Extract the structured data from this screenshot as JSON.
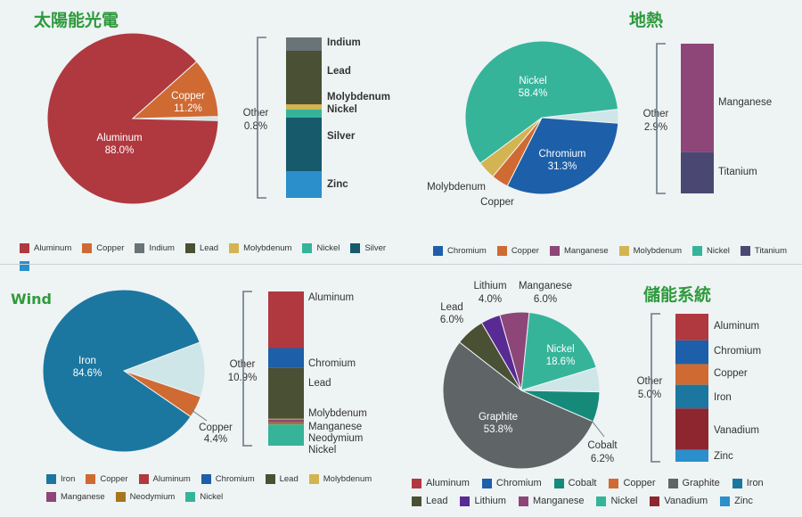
{
  "colors": {
    "Aluminum": "#b0383f",
    "Copper": "#cf6a33",
    "Indium": "#6a7377",
    "Lead": "#4a5034",
    "Molybdenum": "#d3b352",
    "Nickel": "#35b49a",
    "Silver": "#175a6c",
    "Zinc": "#2a8fcb",
    "Chromium": "#1d5fa8",
    "Manganese": "#8d4677",
    "Titanium": "#4a4872",
    "Iron": "#1b77a0",
    "Neodymium": "#a6761d",
    "Cobalt": "#168a7a",
    "Graphite": "#5f6466",
    "Lithium": "#5a2a94",
    "Vanadium": "#8e2630",
    "Other": "#cfe6e8"
  },
  "chart_data": [
    {
      "type": "pie",
      "title": "太陽能光電",
      "slices": [
        {
          "name": "Aluminum",
          "value": 88.0,
          "label": "Aluminum",
          "pct": "88.0%"
        },
        {
          "name": "Copper",
          "value": 11.2,
          "label": "Copper",
          "pct": "11.2%"
        },
        {
          "name": "Other",
          "value": 0.8,
          "label": "Other",
          "pct": "0.8%"
        }
      ],
      "other_breakdown": [
        "Indium",
        "Lead",
        "Molybdenum",
        "Nickel",
        "Silver",
        "Zinc"
      ],
      "other_values": [
        0.05,
        0.2,
        0.02,
        0.03,
        0.2,
        0.1
      ],
      "legend": [
        "Aluminum",
        "Copper",
        "Indium",
        "Lead",
        "Molybdenum",
        "Nickel",
        "Silver",
        ""
      ]
    },
    {
      "type": "pie",
      "title": "地熱",
      "slices": [
        {
          "name": "Nickel",
          "value": 58.4,
          "label": "Nickel",
          "pct": "58.4%"
        },
        {
          "name": "Chromium",
          "value": 31.3,
          "label": "Chromium",
          "pct": "31.3%"
        },
        {
          "name": "Copper",
          "value": 3.6,
          "label": "Copper",
          "pct": ""
        },
        {
          "name": "Molybdenum",
          "value": 3.8,
          "label": "Molybdenum",
          "pct": ""
        },
        {
          "name": "Other",
          "value": 2.9,
          "label": "Other",
          "pct": "2.9%"
        }
      ],
      "other_breakdown": [
        "Manganese",
        "Titanium"
      ],
      "other_values": [
        2.1,
        0.8
      ],
      "legend": [
        "Chromium",
        "Copper",
        "Manganese",
        "Molybdenum",
        "Nickel",
        "Titanium"
      ]
    },
    {
      "type": "pie",
      "title": "Wind",
      "slices": [
        {
          "name": "Iron",
          "value": 84.6,
          "label": "Iron",
          "pct": "84.6%"
        },
        {
          "name": "Other",
          "value": 10.9,
          "label": "Other",
          "pct": "10.9%"
        },
        {
          "name": "Copper",
          "value": 4.4,
          "label": "Copper",
          "pct": "4.4%"
        }
      ],
      "other_breakdown": [
        "Aluminum",
        "Chromium",
        "Lead",
        "Molybdenum",
        "Manganese",
        "Neodymium",
        "Nickel"
      ],
      "other_values": [
        4.0,
        1.4,
        3.6,
        0.05,
        0.2,
        0.15,
        1.5
      ],
      "legend": [
        "Iron",
        "Copper",
        "Aluminum",
        "Chromium",
        "Lead",
        "Molybdenum",
        "Manganese",
        "Neodymium",
        "Nickel"
      ]
    },
    {
      "type": "pie",
      "title": "儲能系統",
      "slices": [
        {
          "name": "Nickel",
          "value": 18.6,
          "label": "Nickel",
          "pct": "18.6%"
        },
        {
          "name": "Other",
          "value": 5.0,
          "label": "Other",
          "pct": "5.0%"
        },
        {
          "name": "Cobalt",
          "value": 6.2,
          "label": "Cobalt",
          "pct": "6.2%"
        },
        {
          "name": "Graphite",
          "value": 53.8,
          "label": "Graphite",
          "pct": "53.8%"
        },
        {
          "name": "Lead",
          "value": 6.0,
          "label": "Lead",
          "pct": "6.0%"
        },
        {
          "name": "Lithium",
          "value": 4.0,
          "label": "Lithium",
          "pct": "4.0%"
        },
        {
          "name": "Manganese",
          "value": 6.0,
          "label": "Manganese",
          "pct": "6.0%"
        }
      ],
      "other_breakdown": [
        "Aluminum",
        "Chromium",
        "Copper",
        "Iron",
        "Vanadium",
        "Zinc"
      ],
      "other_values": [
        0.9,
        0.8,
        0.7,
        0.8,
        1.4,
        0.4
      ],
      "legend": [
        "Aluminum",
        "Chromium",
        "Cobalt",
        "Copper",
        "Graphite",
        "Iron",
        "Lead",
        "Lithium",
        "Manganese",
        "Nickel",
        "Vanadium",
        "Zinc"
      ]
    }
  ]
}
